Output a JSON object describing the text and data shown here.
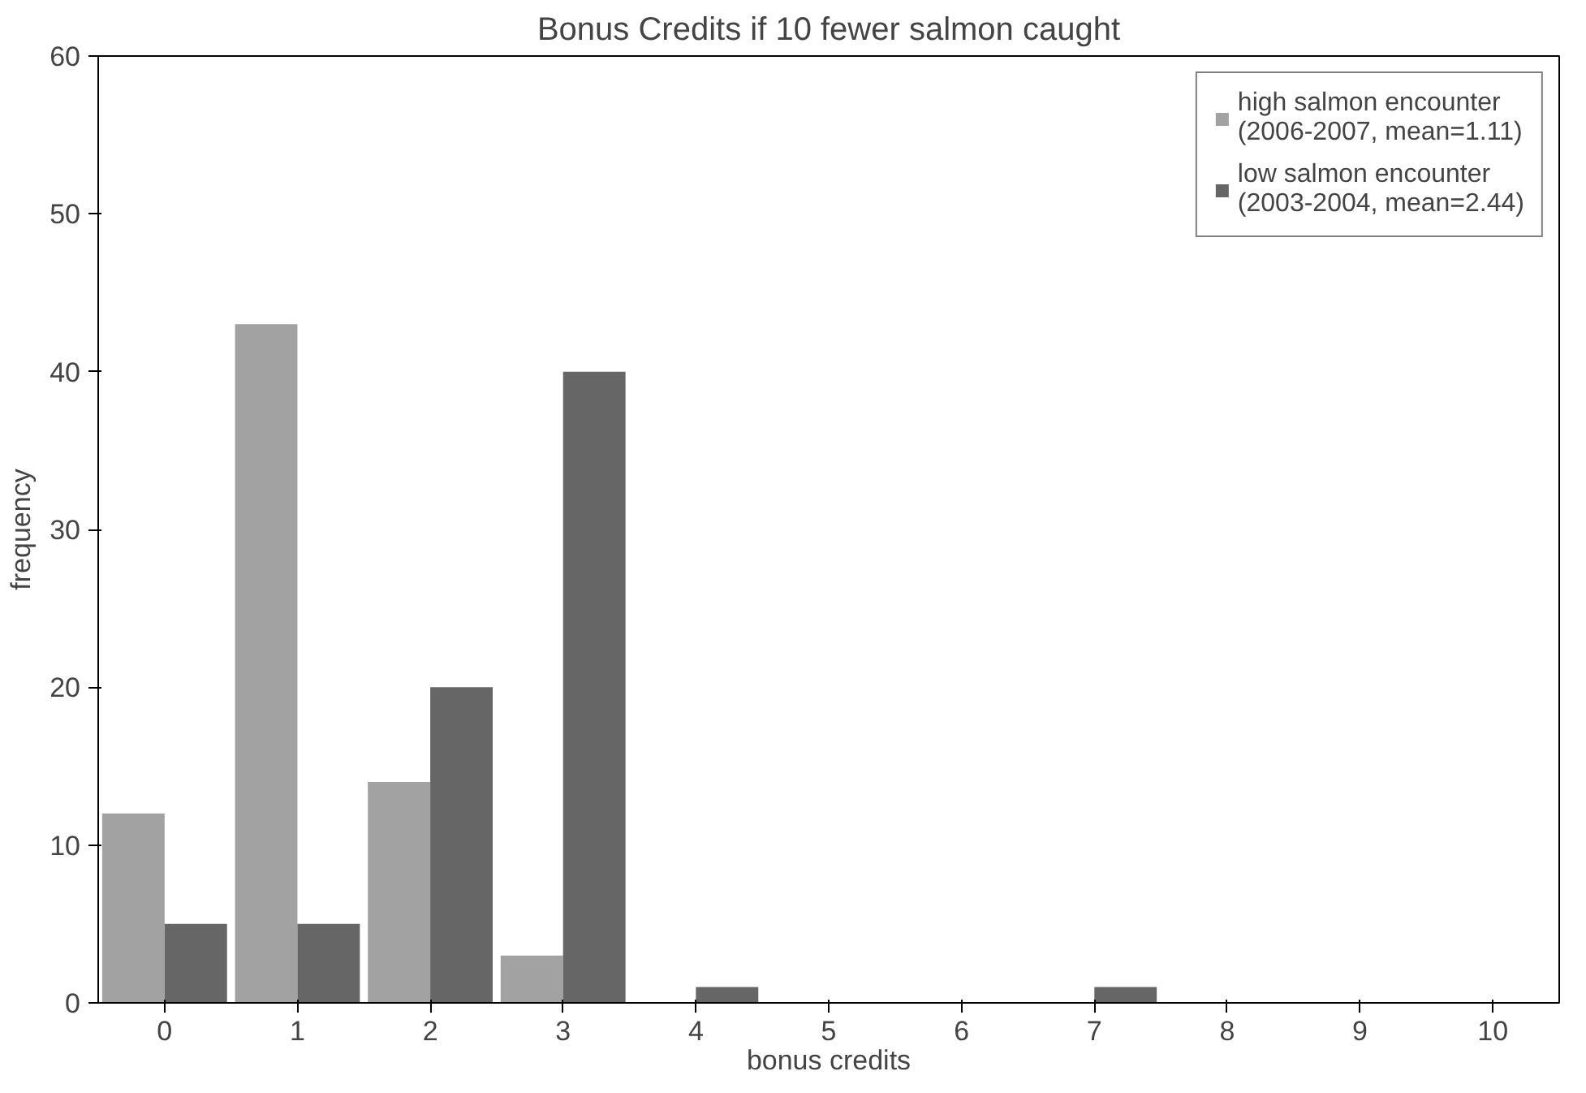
{
  "chart_data": {
    "type": "bar",
    "title": "Bonus Credits if 10 fewer salmon caught",
    "xlabel": "bonus credits",
    "ylabel": "frequency",
    "categories": [
      "0",
      "1",
      "2",
      "3",
      "4",
      "5",
      "6",
      "7",
      "8",
      "9",
      "10"
    ],
    "series": [
      {
        "name": "high salmon encounter\n(2006-2007, mean=1.11)",
        "color": "#a2a2a2",
        "values": [
          12,
          43,
          14,
          3,
          0,
          0,
          0,
          0,
          0,
          0,
          0
        ]
      },
      {
        "name": "low salmon encounter\n(2003-2004, mean=2.44)",
        "color": "#666666",
        "values": [
          5,
          5,
          20,
          40,
          1,
          0,
          0,
          1,
          0,
          0,
          0
        ]
      }
    ],
    "ylim": [
      0,
      60
    ],
    "yticks": [
      0,
      10,
      20,
      30,
      40,
      50,
      60
    ],
    "grid": false,
    "legend": "top right"
  }
}
